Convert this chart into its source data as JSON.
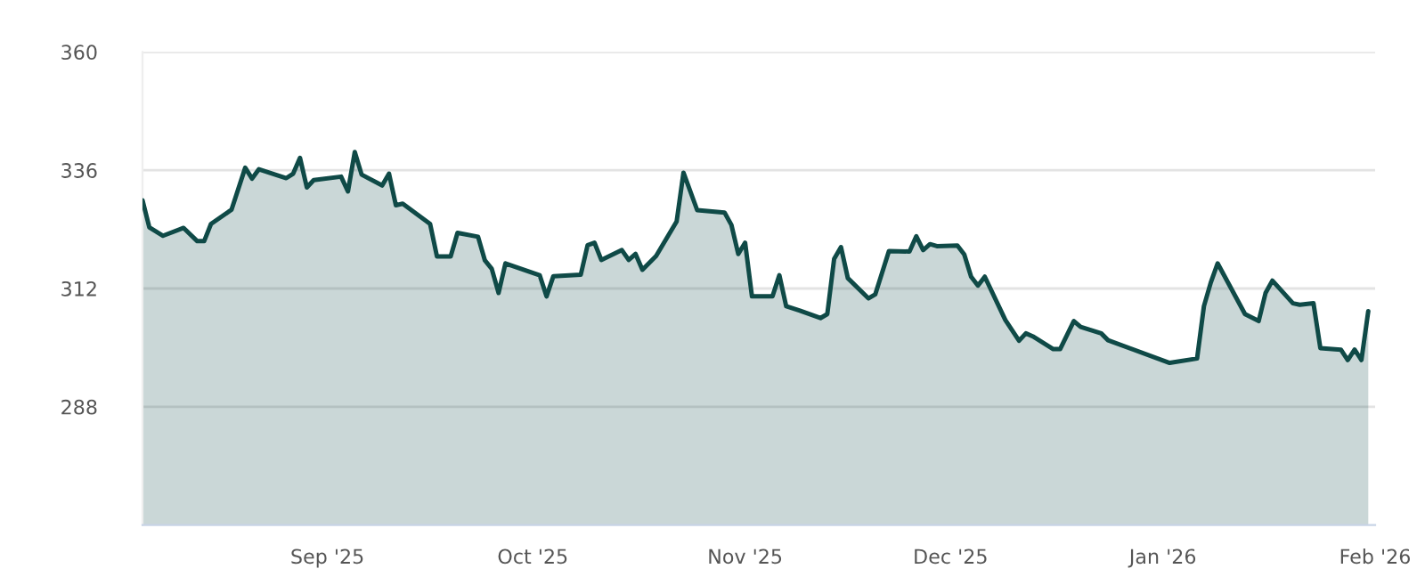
{
  "chart_data": {
    "type": "area",
    "x": [
      "2025-08-05",
      "2025-08-06",
      "2025-08-08",
      "2025-08-11",
      "2025-08-13",
      "2025-08-14",
      "2025-08-15",
      "2025-08-18",
      "2025-08-20",
      "2025-08-21",
      "2025-08-22",
      "2025-08-26",
      "2025-08-27",
      "2025-08-28",
      "2025-08-29",
      "2025-08-30",
      "2025-09-03",
      "2025-09-04",
      "2025-09-05",
      "2025-09-06",
      "2025-09-09",
      "2025-09-10",
      "2025-09-11",
      "2025-09-12",
      "2025-09-16",
      "2025-09-17",
      "2025-09-19",
      "2025-09-20",
      "2025-09-23",
      "2025-09-24",
      "2025-09-25",
      "2025-09-26",
      "2025-09-27",
      "2025-10-02",
      "2025-10-03",
      "2025-10-04",
      "2025-10-08",
      "2025-10-09",
      "2025-10-10",
      "2025-10-11",
      "2025-10-14",
      "2025-10-15",
      "2025-10-16",
      "2025-10-17",
      "2025-10-19",
      "2025-10-22",
      "2025-10-23",
      "2025-10-25",
      "2025-10-29",
      "2025-10-30",
      "2025-10-31",
      "2025-11-01",
      "2025-11-02",
      "2025-11-05",
      "2025-11-06",
      "2025-11-07",
      "2025-11-09",
      "2025-11-12",
      "2025-11-13",
      "2025-11-14",
      "2025-11-15",
      "2025-11-16",
      "2025-11-19",
      "2025-11-20",
      "2025-11-22",
      "2025-11-25",
      "2025-11-26",
      "2025-11-27",
      "2025-11-28",
      "2025-11-29",
      "2025-12-02",
      "2025-12-03",
      "2025-12-04",
      "2025-12-05",
      "2025-12-06",
      "2025-12-09",
      "2025-12-11",
      "2025-12-12",
      "2025-12-13",
      "2025-12-16",
      "2025-12-17",
      "2025-12-19",
      "2025-12-20",
      "2025-12-23",
      "2025-12-24",
      "2026-01-02",
      "2026-01-06",
      "2026-01-07",
      "2026-01-08",
      "2026-01-09",
      "2026-01-13",
      "2026-01-15",
      "2026-01-16",
      "2026-01-17",
      "2026-01-20",
      "2026-01-21",
      "2026-01-23",
      "2026-01-24",
      "2026-01-27",
      "2026-01-28",
      "2026-01-29",
      "2026-01-30",
      "2026-01-31"
    ],
    "series": [
      {
        "color": "#0f4a47",
        "values": [
          329.9,
          324.4,
          322.7,
          324.3,
          321.6,
          321.6,
          325.1,
          328,
          336.5,
          334.3,
          336.2,
          334.4,
          335.3,
          338.5,
          332.5,
          334,
          334.7,
          331.7,
          339.7,
          335.1,
          332.9,
          335.3,
          328.9,
          329.2,
          325.1,
          318.5,
          318.5,
          323.3,
          322.5,
          317.7,
          316,
          311.1,
          317.1,
          314.7,
          310.4,
          314.5,
          314.8,
          320.8,
          321.3,
          317.8,
          319.8,
          317.8,
          319,
          315.8,
          318.6,
          325.6,
          335.5,
          327.9,
          327.4,
          324.9,
          319,
          321.3,
          310.4,
          310.4,
          314.7,
          308.4,
          307.5,
          306,
          306.8,
          318,
          320.4,
          314.1,
          310,
          310.8,
          319.6,
          319.5,
          322.6,
          319.8,
          321,
          320.6,
          320.7,
          318.9,
          314.4,
          312.6,
          314.4,
          305.6,
          301.4,
          302.9,
          302.3,
          299.7,
          299.7,
          305.4,
          304.2,
          302.9,
          301.5,
          296.9,
          297.8,
          308.4,
          313.2,
          317.1,
          306.8,
          305.4,
          311.1,
          313.6,
          309,
          308.7,
          309,
          299.9,
          299.6,
          297.5,
          299.6,
          297.5,
          307.4
        ]
      }
    ],
    "xlim": [
      "2025-08-05",
      "2026-02-01"
    ],
    "xticks": [
      {
        "value": "2025-09-01",
        "label": "Sep '25"
      },
      {
        "value": "2025-10-01",
        "label": "Oct '25"
      },
      {
        "value": "2025-11-01",
        "label": "Nov '25"
      },
      {
        "value": "2025-12-01",
        "label": "Dec '25"
      },
      {
        "value": "2026-01-01",
        "label": "Jan '26"
      },
      {
        "value": "2026-02-01",
        "label": "Feb '26"
      }
    ],
    "ylim": [
      264,
      360
    ],
    "yticks": [
      288,
      312,
      336,
      360
    ],
    "grid": "y"
  }
}
